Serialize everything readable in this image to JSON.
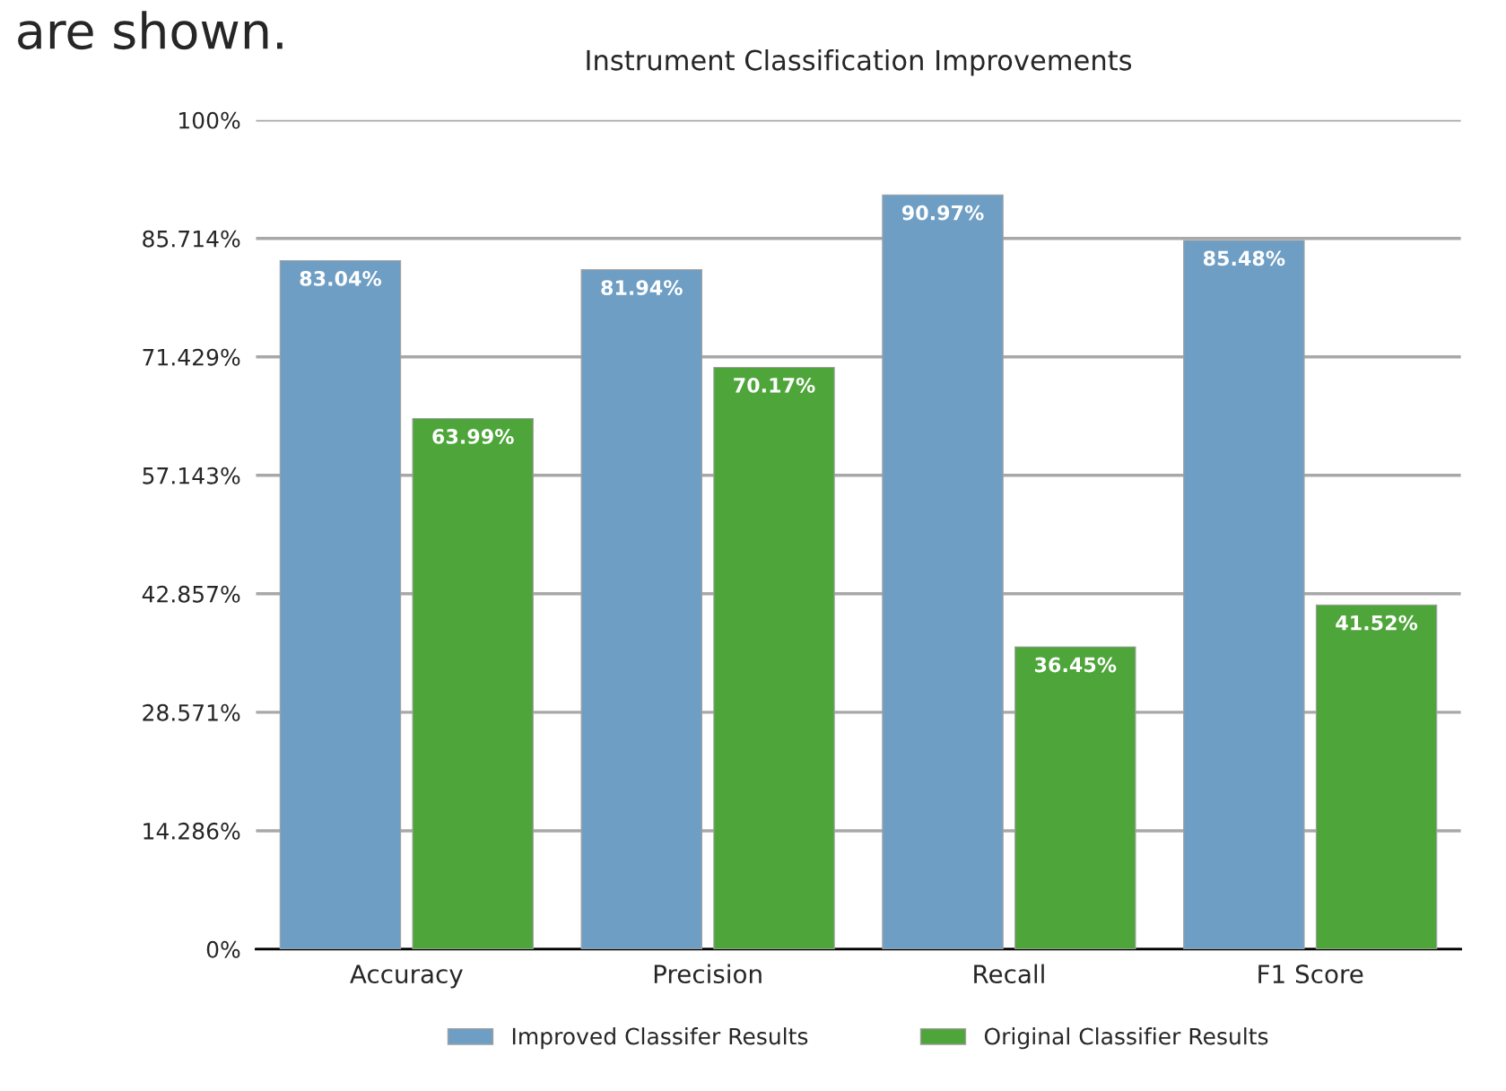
{
  "chart_data": {
    "type": "bar",
    "title": "Instrument Classification Improvements",
    "annotations": [
      "are shown."
    ],
    "categories": [
      "Accuracy",
      "Precision",
      "Recall",
      "F1 Score"
    ],
    "series": [
      {
        "name": "Improved Classifer Results",
        "color": "#6f9ec4",
        "values": [
          83.04,
          81.94,
          90.97,
          85.48
        ],
        "value_labels": [
          "83.04%",
          "81.94%",
          "90.97%",
          "85.48%"
        ]
      },
      {
        "name": "Original Classifier Results",
        "color": "#4ea53a",
        "values": [
          63.99,
          70.17,
          36.45,
          41.52
        ],
        "value_labels": [
          "63.99%",
          "70.17%",
          "36.45%",
          "41.52%"
        ]
      }
    ],
    "ylim": [
      0,
      100
    ],
    "yticks": [
      {
        "value": 0,
        "label": "0%"
      },
      {
        "value": 14.286,
        "label": "14.286%"
      },
      {
        "value": 28.571,
        "label": "28.571%"
      },
      {
        "value": 42.857,
        "label": "42.857%"
      },
      {
        "value": 57.143,
        "label": "57.143%"
      },
      {
        "value": 71.429,
        "label": "71.429%"
      },
      {
        "value": 85.714,
        "label": "85.714%"
      },
      {
        "value": 100,
        "label": "100%"
      }
    ],
    "grid": "y",
    "legend": "bottom"
  }
}
